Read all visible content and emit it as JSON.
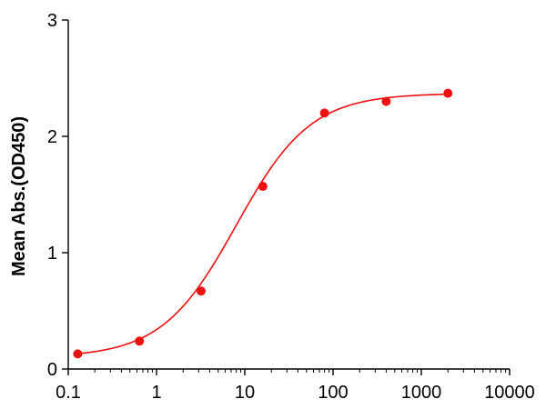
{
  "chart_data": {
    "type": "scatter",
    "title": "",
    "xlabel": "",
    "ylabel": "Mean Abs.(OD450)",
    "xscale": "log",
    "xlim": [
      0.1,
      10000
    ],
    "ylim": [
      0,
      3
    ],
    "xticks": [
      0.1,
      1,
      10,
      100,
      1000,
      10000
    ],
    "xtick_labels": [
      "0.1",
      "1",
      "10",
      "100",
      "1000",
      "10000"
    ],
    "yticks": [
      0,
      1,
      2,
      3
    ],
    "ytick_labels": [
      "0",
      "1",
      "2",
      "3"
    ],
    "grid": false,
    "legend": "none",
    "series": [
      {
        "x": [
          0.128,
          0.64,
          3.2,
          16,
          80,
          400,
          2000
        ],
        "y": [
          0.13,
          0.24,
          0.67,
          1.57,
          2.2,
          2.3,
          2.37
        ],
        "color": "#ee1111",
        "marker": "circle",
        "fit": {
          "model": "4PL",
          "bottom": 0.1,
          "top": 2.37,
          "ec50": 8.0,
          "hill": 1.03
        }
      }
    ]
  }
}
